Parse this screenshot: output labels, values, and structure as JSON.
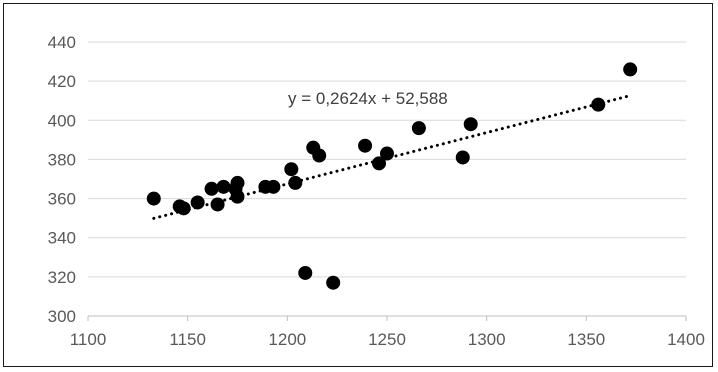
{
  "chart_data": {
    "type": "scatter",
    "title": "",
    "xlabel": "",
    "ylabel": "",
    "xlim": [
      1100,
      1400
    ],
    "ylim": [
      300,
      440
    ],
    "x_ticks": [
      1100,
      1150,
      1200,
      1250,
      1300,
      1350,
      1400
    ],
    "y_ticks": [
      300,
      320,
      340,
      360,
      380,
      400,
      420,
      440
    ],
    "x_tick_labels": [
      "1100",
      "1150",
      "1200",
      "1250",
      "1300",
      "1350",
      "1400"
    ],
    "y_tick_labels": [
      "300",
      "320",
      "340",
      "360",
      "380",
      "400",
      "420",
      "440"
    ],
    "grid": "horizontal",
    "legend": "none",
    "series": [
      {
        "marker_color": "#000000",
        "points": [
          [
            1133,
            360
          ],
          [
            1146,
            356
          ],
          [
            1148,
            355
          ],
          [
            1155,
            358
          ],
          [
            1162,
            365
          ],
          [
            1165,
            357
          ],
          [
            1168,
            366
          ],
          [
            1174,
            365
          ],
          [
            1175,
            368
          ],
          [
            1175,
            361
          ],
          [
            1189,
            366
          ],
          [
            1193,
            366
          ],
          [
            1202,
            375
          ],
          [
            1204,
            368
          ],
          [
            1209,
            322
          ],
          [
            1213,
            386
          ],
          [
            1216,
            382
          ],
          [
            1223,
            317
          ],
          [
            1239,
            387
          ],
          [
            1246,
            378
          ],
          [
            1250,
            383
          ],
          [
            1266,
            396
          ],
          [
            1288,
            381
          ],
          [
            1292,
            398
          ],
          [
            1356,
            408
          ],
          [
            1372,
            426
          ]
        ]
      }
    ],
    "trendline": {
      "type": "linear",
      "slope": 0.2624,
      "intercept": 52.588,
      "x_range": [
        1133,
        1372
      ],
      "style": "dotted",
      "color": "#000000",
      "equation_label": "y = 0,2624x + 52,588"
    }
  }
}
